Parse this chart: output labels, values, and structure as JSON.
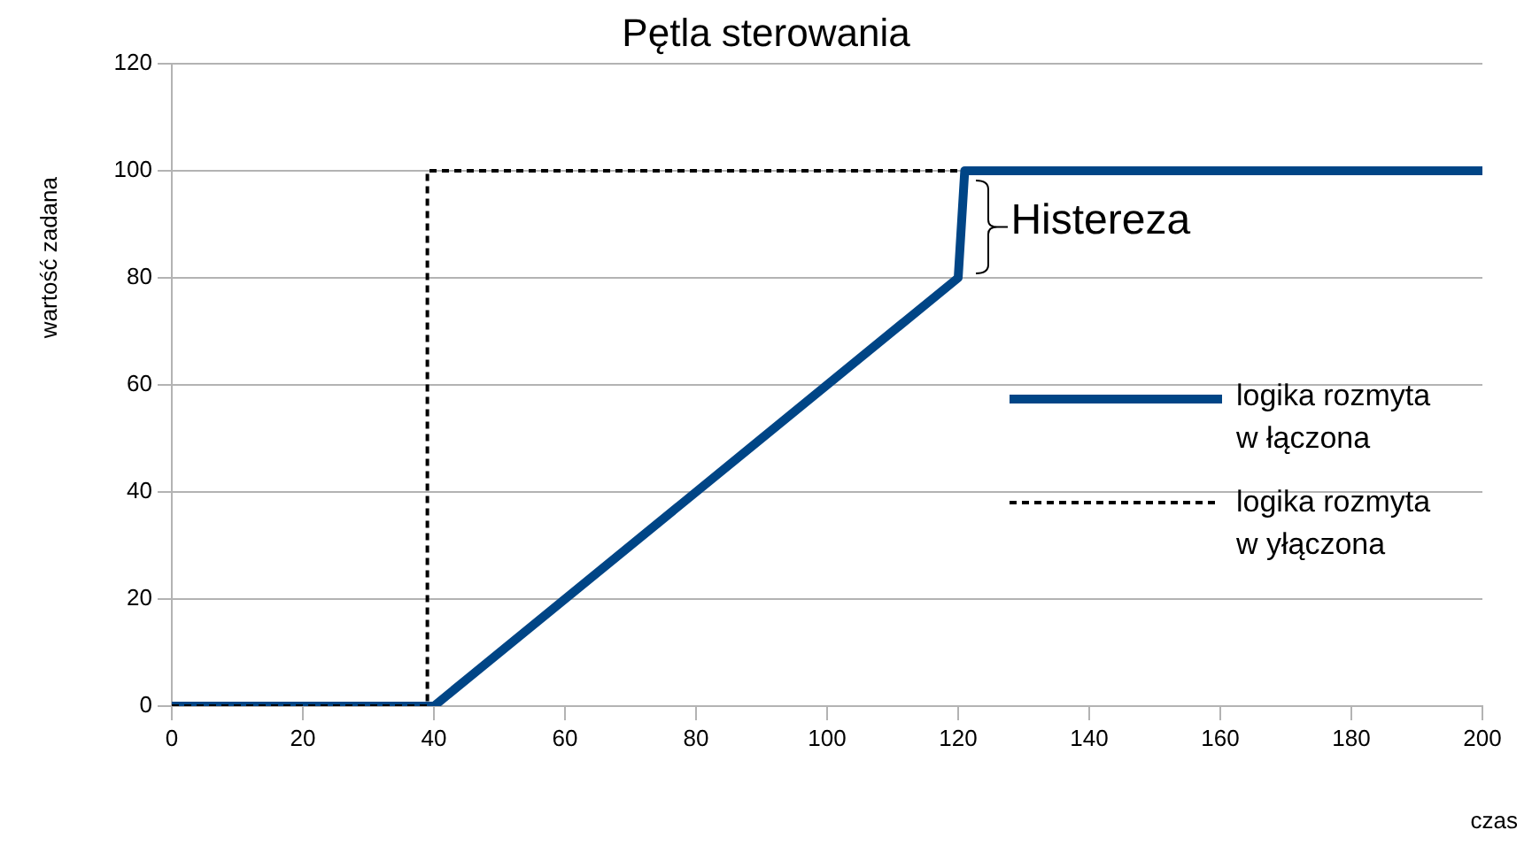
{
  "chart_data": {
    "type": "line",
    "title": "Pętla sterowania",
    "xlabel": "czas",
    "ylabel": "wartość zadana",
    "xlim": [
      0,
      200
    ],
    "xticks": [
      0,
      20,
      40,
      60,
      80,
      100,
      120,
      140,
      160,
      180,
      200
    ],
    "ylim": [
      0,
      120
    ],
    "yticks": [
      0,
      20,
      40,
      60,
      80,
      100,
      120
    ],
    "grid": "y",
    "legend": "right",
    "marker": "none",
    "annotations": [
      {
        "text": "Histereza",
        "x": 121,
        "y": 90
      }
    ],
    "series": [
      {
        "name": "logika rozmyta w łączona",
        "color": "#004586",
        "line_style": "solid",
        "x": [
          0,
          40,
          120,
          121,
          200
        ],
        "values": [
          0,
          0,
          80,
          100,
          100
        ]
      },
      {
        "name": "logika rozmyta w yłączona",
        "color": "#000000",
        "line_style": "dashed",
        "x": [
          0,
          39,
          39,
          120
        ],
        "values": [
          0,
          0,
          100,
          100
        ]
      }
    ]
  }
}
